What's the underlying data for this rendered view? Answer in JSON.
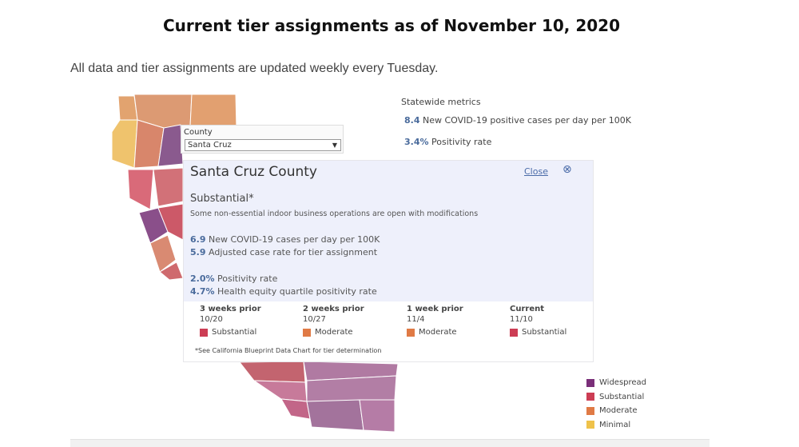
{
  "title": "Current tier assignments as of November 10, 2020",
  "subtitle": "All data and tier assignments are updated weekly every Tuesday.",
  "statewide": {
    "heading": "Statewide metrics",
    "case_rate": "8.4",
    "case_rate_label": "New COVID-19 positive cases per day per 100K",
    "positivity": "3.4%",
    "positivity_label": "Positivity rate"
  },
  "county_filter": {
    "label": "County",
    "selected": "Santa Cruz",
    "arrow_icon": "dropdown-arrow-icon"
  },
  "popup": {
    "county_name": "Santa Cruz County",
    "close_label": "Close",
    "close_icon": "close-circle-icon",
    "tier": "Substantial*",
    "tier_description": "Some non-essential indoor business operations are open with modifications",
    "stats": [
      {
        "value": "6.9",
        "label": "New COVID-19 cases per day per 100K"
      },
      {
        "value": "5.9",
        "label": "Adjusted case rate for tier assignment"
      },
      {
        "value": "2.0%",
        "label": "Positivity rate"
      },
      {
        "value": "4.7%",
        "label": "Health equity quartile positivity rate"
      }
    ],
    "history": [
      {
        "header": "3 weeks prior",
        "date": "10/20",
        "tier": "Substantial",
        "color": "#cc3d54"
      },
      {
        "header": "2 weeks prior",
        "date": "10/27",
        "tier": "Moderate",
        "color": "#e07a45"
      },
      {
        "header": "1 week prior",
        "date": "11/4",
        "tier": "Moderate",
        "color": "#e07a45"
      },
      {
        "header": "Current",
        "date": "11/10",
        "tier": "Substantial",
        "color": "#cc3d54"
      }
    ],
    "note": "*See California Blueprint Data Chart for tier determination"
  },
  "legend": [
    {
      "label": "Widespread",
      "color": "#7a2f79"
    },
    {
      "label": "Substantial",
      "color": "#cc3d54"
    },
    {
      "label": "Moderate",
      "color": "#e07a45"
    },
    {
      "label": "Minimal",
      "color": "#efc24a"
    }
  ]
}
